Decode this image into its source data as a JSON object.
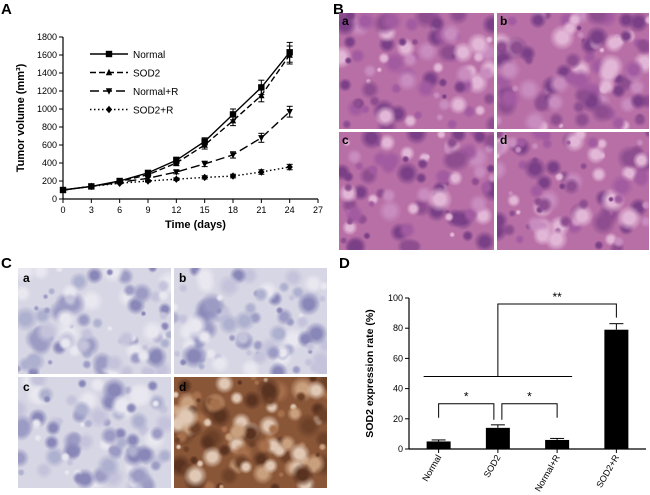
{
  "panels": {
    "a": "A",
    "b": "B",
    "c": "C",
    "d": "D"
  },
  "colors": {
    "he_stain": "#b86fa6",
    "ihc_bg": "#d7d6e4",
    "ihc_positive": "#8a5638",
    "bar_fill": "#000000"
  },
  "chart_data": [
    {
      "type": "line",
      "panel": "A",
      "xlabel": "Time (days)",
      "ylabel": "Tumor volume (mm³)",
      "xlim": [
        0,
        27
      ],
      "ylim": [
        0,
        1800
      ],
      "xticks": [
        0,
        3,
        6,
        9,
        12,
        15,
        18,
        21,
        24,
        27
      ],
      "yticks": [
        0,
        200,
        400,
        600,
        800,
        1000,
        1200,
        1400,
        1600,
        1800
      ],
      "legend_position": "top-left",
      "x": [
        0,
        3,
        6,
        9,
        12,
        15,
        18,
        21,
        24
      ],
      "series": [
        {
          "name": "Normal",
          "marker": "square",
          "dash": "solid",
          "values": [
            100,
            140,
            200,
            290,
            430,
            640,
            940,
            1240,
            1630
          ],
          "errors": [
            8,
            10,
            15,
            25,
            35,
            40,
            60,
            80,
            110
          ]
        },
        {
          "name": "SOD2",
          "marker": "triangle-up",
          "dash": "dashed",
          "values": [
            100,
            140,
            195,
            270,
            400,
            600,
            870,
            1150,
            1600
          ],
          "errors": [
            8,
            10,
            15,
            25,
            30,
            45,
            55,
            70,
            100
          ]
        },
        {
          "name": "Normal+R",
          "marker": "triangle-down",
          "dash": "longdash",
          "values": [
            100,
            140,
            185,
            230,
            300,
            390,
            490,
            680,
            970
          ],
          "errors": [
            8,
            10,
            12,
            18,
            20,
            30,
            35,
            50,
            60
          ]
        },
        {
          "name": "SOD2+R",
          "marker": "diamond",
          "dash": "dotted",
          "values": [
            100,
            140,
            175,
            200,
            220,
            240,
            255,
            300,
            355
          ],
          "errors": [
            5,
            8,
            10,
            12,
            15,
            18,
            20,
            25,
            30
          ]
        }
      ]
    },
    {
      "type": "bar",
      "panel": "D",
      "ylabel": "SOD2 expression rate (%)",
      "ylim": [
        0,
        100
      ],
      "yticks": [
        0,
        20,
        40,
        60,
        80,
        100
      ],
      "categories": [
        "Normal",
        "SOD2",
        "Normal+R",
        "SOD2+R"
      ],
      "values": [
        5,
        14,
        6,
        79
      ],
      "errors": [
        1,
        2,
        1,
        4
      ],
      "significance": [
        "*",
        "*",
        "**"
      ]
    }
  ],
  "micrographs": {
    "he": [
      "a",
      "b",
      "c",
      "d"
    ],
    "ihc": [
      "a",
      "b",
      "c",
      "d"
    ]
  }
}
